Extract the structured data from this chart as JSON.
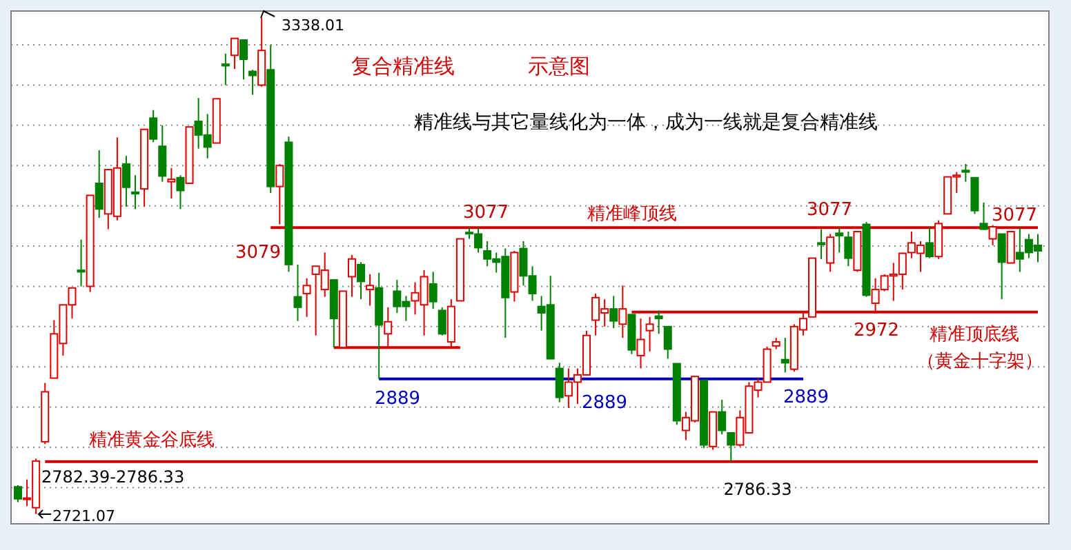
{
  "chart_data": {
    "type": "candlestick",
    "title": "复合精准线",
    "subtitle": "示意图",
    "categories": [
      null,
      null,
      null,
      null,
      null,
      null,
      null,
      null,
      null,
      null,
      null,
      null,
      null,
      null,
      null,
      null,
      null,
      null,
      null,
      null,
      null,
      null,
      null,
      null,
      null,
      null,
      null,
      null,
      null,
      null,
      null,
      null,
      null,
      null,
      null,
      null,
      null,
      null,
      null,
      null,
      null,
      null,
      null,
      null,
      null,
      null,
      null,
      null,
      null,
      null,
      null,
      null,
      null,
      null,
      null,
      null,
      null,
      null,
      null,
      null,
      null,
      null,
      null,
      null,
      null,
      null,
      null,
      null,
      null,
      null,
      null,
      null,
      null,
      null,
      null,
      null,
      null,
      null,
      null,
      null,
      null,
      null,
      null,
      null,
      null,
      null,
      null,
      null,
      null,
      null,
      null,
      null,
      null,
      null,
      null,
      null,
      null,
      null,
      null,
      null,
      null,
      null,
      null,
      null,
      null,
      null,
      null,
      null,
      null,
      null,
      null,
      null,
      null,
      null
    ],
    "ohlc": [
      [
        2755,
        2757,
        2736,
        2740
      ],
      [
        2740,
        2764,
        2731,
        2741
      ],
      [
        2729,
        2790,
        2721.07,
        2787
      ],
      [
        2811,
        2884,
        2808,
        2873
      ],
      [
        2890,
        2962,
        2890,
        2945
      ],
      [
        2933,
        2981,
        2918,
        2981
      ],
      [
        2981,
        3002,
        2964,
        3002
      ],
      [
        3024,
        3062,
        3004,
        3022
      ],
      [
        3004,
        3117,
        2997,
        3117
      ],
      [
        3132,
        3173,
        3089,
        3100
      ],
      [
        3094,
        3149,
        3075,
        3149
      ],
      [
        3091,
        3189,
        3086,
        3151
      ],
      [
        3156,
        3166,
        3103,
        3127
      ],
      [
        3121,
        3142,
        3100,
        3119
      ],
      [
        3125,
        3199,
        3103,
        3199
      ],
      [
        3213,
        3223,
        3183,
        3187
      ],
      [
        3178,
        3204,
        3134,
        3141
      ],
      [
        3134,
        3151,
        3113,
        3137
      ],
      [
        3139,
        3142,
        3100,
        3123
      ],
      [
        3132,
        3202,
        3132,
        3202
      ],
      [
        3209,
        3238,
        3175,
        3192
      ],
      [
        3192,
        3218,
        3163,
        3177
      ],
      [
        3182,
        3237,
        3182,
        3237
      ],
      [
        3280,
        3293,
        3254,
        3278
      ],
      [
        3291,
        3312,
        3274,
        3312
      ],
      [
        3310,
        3310,
        3261,
        3286
      ],
      [
        3271,
        3273,
        3242,
        3266
      ],
      [
        3254,
        3338.01,
        3252,
        3297
      ],
      [
        3273,
        3304,
        3120,
        3128
      ],
      [
        3128,
        3156,
        3081,
        3154
      ],
      [
        3183,
        3190,
        3022,
        3031
      ],
      [
        2991,
        3031,
        2961,
        2978
      ],
      [
        2995,
        3014,
        2966,
        3005
      ],
      [
        3019,
        3029,
        2943,
        3029
      ],
      [
        3000,
        3046,
        2991,
        3024
      ],
      [
        3012,
        3012,
        2928,
        2964
      ],
      [
        2928,
        2998,
        2928,
        2998
      ],
      [
        3016,
        3043,
        2991,
        3038
      ],
      [
        3031,
        3034,
        2988,
        3010
      ],
      [
        3000,
        3019,
        2980,
        3005
      ],
      [
        3002,
        3021,
        2889,
        2956
      ],
      [
        2945,
        2978,
        2928,
        2960
      ],
      [
        2998,
        3012,
        2971,
        2979
      ],
      [
        2985,
        2992,
        2961,
        2979
      ],
      [
        2986,
        3009,
        2969,
        2996
      ],
      [
        2981,
        3024,
        2943,
        3016
      ],
      [
        3007,
        3022,
        2976,
        2985
      ],
      [
        2974,
        2978,
        2943,
        2945
      ],
      [
        2935,
        2988,
        2928,
        2979
      ],
      [
        2986,
        3063,
        2986,
        3063
      ],
      [
        3071,
        3077,
        3063,
        3070
      ],
      [
        3069,
        3077,
        3046,
        3052
      ],
      [
        3048,
        3060,
        3029,
        3038
      ],
      [
        3038,
        3046,
        3021,
        3034
      ],
      [
        3041,
        3051,
        2940,
        2990
      ],
      [
        2997,
        3048,
        2985,
        3046
      ],
      [
        3051,
        3060,
        3005,
        3017
      ],
      [
        3017,
        3029,
        2986,
        2995
      ],
      [
        2979,
        2992,
        2949,
        2971
      ],
      [
        2981,
        3017,
        2914,
        2914
      ],
      [
        2902,
        2909,
        2860,
        2866
      ],
      [
        2868,
        2902,
        2853,
        2885
      ],
      [
        2885,
        2902,
        2858,
        2894
      ],
      [
        2894,
        2949,
        2894,
        2943
      ],
      [
        2962,
        2995,
        2943,
        2990
      ],
      [
        2971,
        2988,
        2954,
        2976
      ],
      [
        2976,
        2992,
        2952,
        2961
      ],
      [
        2957,
        3005,
        2940,
        2976
      ],
      [
        2969,
        2969,
        2920,
        2925
      ],
      [
        2918,
        2964,
        2902,
        2938
      ],
      [
        2949,
        2966,
        2923,
        2957
      ],
      [
        2967,
        2974,
        2945,
        2964
      ],
      [
        2954,
        2954,
        2914,
        2926
      ],
      [
        2908,
        2908,
        2832,
        2837
      ],
      [
        2825,
        2848,
        2813,
        2841
      ],
      [
        2837,
        2892,
        2835,
        2892
      ],
      [
        2887,
        2887,
        2803,
        2807
      ],
      [
        2805,
        2848,
        2801,
        2848
      ],
      [
        2848,
        2863,
        2820,
        2825
      ],
      [
        2822,
        2822,
        2786.33,
        2807
      ],
      [
        2807,
        2850,
        2805,
        2841
      ],
      [
        2822,
        2885,
        2822,
        2880
      ],
      [
        2875,
        2890,
        2866,
        2885
      ],
      [
        2885,
        2929,
        2885,
        2926
      ],
      [
        2930,
        2940,
        2926,
        2935
      ],
      [
        2913,
        2940,
        2897,
        2909
      ],
      [
        2901,
        2957,
        2898,
        2954
      ],
      [
        2950,
        2973,
        2943,
        2964
      ],
      [
        2966,
        3039,
        2966,
        3039
      ],
      [
        3058,
        3075,
        3038,
        3056
      ],
      [
        3033,
        3069,
        3022,
        3065
      ],
      [
        3070,
        3077,
        3046,
        3067
      ],
      [
        3065,
        3072,
        3029,
        3039
      ],
      [
        3024,
        3072,
        3022,
        3072
      ],
      [
        3081,
        3084,
        2991,
        2993
      ],
      [
        2983,
        3014,
        2972,
        3000
      ],
      [
        3000,
        3019,
        2998,
        3017
      ],
      [
        3017,
        3033,
        2986,
        3019
      ],
      [
        3019,
        3046,
        3000,
        3045
      ],
      [
        3046,
        3072,
        3039,
        3058
      ],
      [
        3045,
        3060,
        3022,
        3055
      ],
      [
        3058,
        3077,
        3039,
        3041
      ],
      [
        3041,
        3086,
        3038,
        3082
      ],
      [
        3094,
        3140,
        3094,
        3140
      ],
      [
        3140,
        3146,
        3120,
        3142
      ],
      [
        3148,
        3156,
        3134,
        3146
      ],
      [
        3139,
        3139,
        3094,
        3098
      ],
      [
        3082,
        3108,
        3074,
        3075
      ],
      [
        3063,
        3080,
        3055,
        3078
      ],
      [
        3069,
        3069,
        2988,
        3034
      ],
      [
        3033,
        3072,
        3033,
        3072
      ],
      [
        3046,
        3077,
        3022,
        3038
      ],
      [
        3062,
        3069,
        3039,
        3046
      ],
      [
        3055,
        3069,
        3034,
        3048
      ]
    ],
    "ylim": [
      2709,
      3346
    ],
    "yticks": [
      {
        "value": 2754,
        "label": null
      },
      {
        "value": 2804,
        "label": null
      },
      {
        "value": 2854,
        "label": null
      },
      {
        "value": 2904,
        "label": null
      },
      {
        "value": 2954,
        "label": null
      },
      {
        "value": 3004,
        "label": null
      },
      {
        "value": 3054,
        "label": null
      },
      {
        "value": 3104,
        "label": null
      },
      {
        "value": 3154,
        "label": null
      },
      {
        "value": 3204,
        "label": null
      },
      {
        "value": 3254,
        "label": null
      },
      {
        "value": 3304,
        "label": null
      }
    ],
    "grid": "y",
    "series": [
      {
        "name": "精准峰顶线",
        "type": "line",
        "color": "#d40000",
        "values": [
          null,
          null,
          null,
          null,
          null,
          null,
          null,
          null,
          null,
          null,
          null,
          null,
          null,
          null,
          null,
          null,
          null,
          null,
          null,
          null,
          null,
          null,
          null,
          null,
          null,
          null,
          null,
          null,
          3077,
          3077,
          3077,
          3077,
          3077,
          3077,
          3077,
          3077,
          3077,
          3077,
          3077,
          3077,
          3077,
          3077,
          3077,
          3077,
          3077,
          3077,
          3077,
          3077,
          3077,
          3077,
          3077,
          3077,
          3077,
          3077,
          3077,
          3077,
          3077,
          3077,
          3077,
          3077,
          3077,
          3077,
          3077,
          3077,
          3077,
          3077,
          3077,
          3077,
          3077,
          3077,
          3077,
          3077,
          3077,
          3077,
          3077,
          3077,
          3077,
          3077,
          3077,
          3077,
          3077,
          3077,
          3077,
          3077,
          3077,
          3077,
          3077,
          3077,
          3077,
          3077,
          3077,
          3077,
          3077,
          3077,
          3077,
          3077,
          3077,
          3077,
          3077,
          3077,
          3077,
          3077,
          3077,
          3077,
          3077,
          3077,
          3077,
          3077,
          3077,
          3077,
          3077,
          3077,
          3077,
          3077
        ]
      },
      {
        "name": "精准顶底线",
        "type": "line",
        "color": "#d40000",
        "values": [
          null,
          null,
          null,
          null,
          null,
          null,
          null,
          null,
          null,
          null,
          null,
          null,
          null,
          null,
          null,
          null,
          null,
          null,
          null,
          null,
          null,
          null,
          null,
          null,
          null,
          null,
          null,
          null,
          null,
          null,
          null,
          null,
          null,
          null,
          null,
          null,
          null,
          null,
          null,
          null,
          null,
          null,
          null,
          null,
          null,
          null,
          null,
          null,
          null,
          null,
          null,
          null,
          null,
          null,
          null,
          null,
          null,
          null,
          null,
          null,
          null,
          null,
          null,
          null,
          null,
          null,
          null,
          null,
          2972,
          2972,
          2972,
          2972,
          2972,
          2972,
          2972,
          2972,
          2972,
          2972,
          2972,
          2972,
          2972,
          2972,
          2972,
          2972,
          2972,
          2972,
          2972,
          2972,
          2972,
          2972,
          2972,
          2972,
          2972,
          2972,
          2972,
          2972,
          2972,
          2972,
          2972,
          2972,
          2972,
          2972,
          2972,
          2972,
          2972,
          2972,
          2972,
          2972,
          2972,
          2972,
          2972,
          2972,
          2972,
          2972
        ]
      },
      {
        "name": "精准黄金谷底线",
        "type": "line",
        "color": "#d40000",
        "values": [
          null,
          null,
          null,
          2786.33,
          2786.33,
          2786.33,
          2786.33,
          2786.33,
          2786.33,
          2786.33,
          2786.33,
          2786.33,
          2786.33,
          2786.33,
          2786.33,
          2786.33,
          2786.33,
          2786.33,
          2786.33,
          2786.33,
          2786.33,
          2786.33,
          2786.33,
          2786.33,
          2786.33,
          2786.33,
          2786.33,
          2786.33,
          2786.33,
          2786.33,
          2786.33,
          2786.33,
          2786.33,
          2786.33,
          2786.33,
          2786.33,
          2786.33,
          2786.33,
          2786.33,
          2786.33,
          2786.33,
          2786.33,
          2786.33,
          2786.33,
          2786.33,
          2786.33,
          2786.33,
          2786.33,
          2786.33,
          2786.33,
          2786.33,
          2786.33,
          2786.33,
          2786.33,
          2786.33,
          2786.33,
          2786.33,
          2786.33,
          2786.33,
          2786.33,
          2786.33,
          2786.33,
          2786.33,
          2786.33,
          2786.33,
          2786.33,
          2786.33,
          2786.33,
          2786.33,
          2786.33,
          2786.33,
          2786.33,
          2786.33,
          2786.33,
          2786.33,
          2786.33,
          2786.33,
          2786.33,
          2786.33,
          2786.33,
          2786.33,
          2786.33,
          2786.33,
          2786.33,
          2786.33,
          2786.33,
          2786.33,
          2786.33,
          2786.33,
          2786.33,
          2786.33,
          2786.33,
          2786.33,
          2786.33,
          2786.33,
          2786.33,
          2786.33,
          2786.33,
          2786.33,
          2786.33,
          2786.33,
          2786.33,
          2786.33,
          2786.33,
          2786.33,
          2786.33,
          2786.33,
          2786.33,
          2786.33,
          2786.33,
          2786.33,
          2786.33,
          2786.33,
          2786.33
        ]
      },
      {
        "type": "line",
        "color": "#0000c0",
        "values": [
          null,
          null,
          null,
          null,
          null,
          null,
          null,
          null,
          null,
          null,
          null,
          null,
          null,
          null,
          null,
          null,
          null,
          null,
          null,
          null,
          null,
          null,
          null,
          null,
          null,
          null,
          null,
          null,
          null,
          null,
          null,
          null,
          null,
          null,
          null,
          null,
          null,
          null,
          null,
          null,
          2889,
          2889,
          2889,
          2889,
          2889,
          2889,
          2889,
          2889,
          2889,
          2889,
          2889,
          2889,
          2889,
          2889,
          2889,
          2889,
          2889,
          2889,
          2889,
          2889,
          2889,
          2889,
          2889,
          2889,
          2889,
          2889,
          2889,
          2889,
          2889,
          2889,
          2889,
          2889,
          2889,
          2889,
          2889,
          2889,
          2889,
          2889,
          2889,
          2889,
          2889,
          2889,
          2889,
          2889,
          2889,
          2889,
          2889,
          2889,
          null,
          null,
          null,
          null,
          null,
          null,
          null,
          null,
          null,
          null,
          null,
          null,
          null,
          null,
          null,
          null,
          null,
          null,
          null,
          null,
          null,
          null,
          null,
          null,
          null,
          null
        ]
      },
      {
        "type": "line",
        "color": "#d40000",
        "values": [
          null,
          null,
          null,
          null,
          null,
          null,
          null,
          null,
          null,
          null,
          null,
          null,
          null,
          null,
          null,
          null,
          null,
          null,
          null,
          null,
          null,
          null,
          null,
          null,
          null,
          null,
          null,
          null,
          null,
          null,
          null,
          null,
          null,
          null,
          null,
          2928,
          2928,
          2928,
          2928,
          2928,
          2928,
          2928,
          2928,
          2928,
          2928,
          2928,
          2928,
          2928,
          2928,
          2928,
          null,
          null,
          null,
          null,
          null,
          null,
          null,
          null,
          null,
          null,
          null,
          null,
          null,
          null,
          null,
          null,
          null,
          null,
          null,
          null,
          null,
          null,
          null,
          null,
          null,
          null,
          null,
          null,
          null,
          null,
          null,
          null,
          null,
          null,
          null,
          null,
          null,
          null,
          null,
          null,
          null,
          null,
          null,
          null,
          null,
          null,
          null,
          null,
          null,
          null,
          null,
          null,
          null,
          null,
          null,
          null,
          null,
          null,
          null,
          null,
          null,
          null,
          null,
          null
        ]
      }
    ],
    "annotations": [
      "精准线与其它量线化为一体，成为一线就是复合精准线",
      "3338.01",
      "2721.07",
      "2782.39-2786.33",
      "3079",
      {
        "text": "3077",
        "y": 3077
      },
      {
        "text": "3077",
        "y": 3077
      },
      {
        "text": "3077",
        "y": 3077
      },
      {
        "text": "2889",
        "y": 2889
      },
      {
        "text": "2889",
        "y": 2889
      },
      {
        "text": "2889",
        "y": 2889
      },
      {
        "text": "2972",
        "y": 2972
      },
      {
        "text": "2786.33",
        "y": 2786.33
      },
      "（黄金十字架）"
    ]
  }
}
